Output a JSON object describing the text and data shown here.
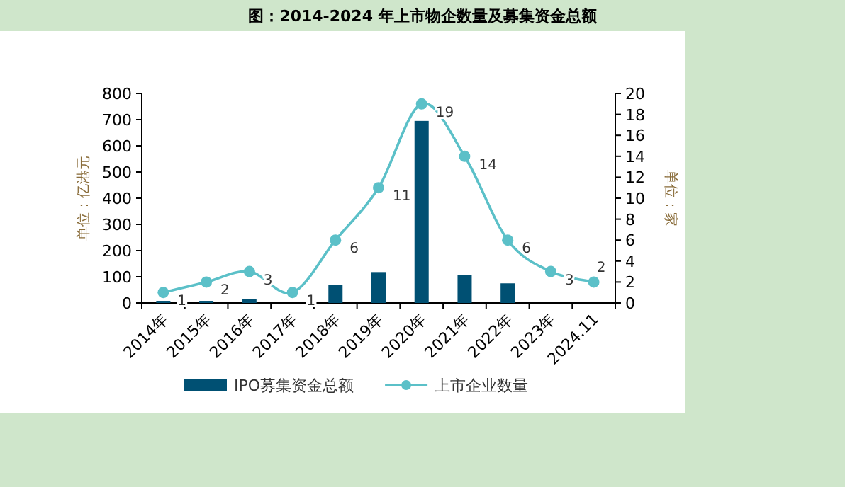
{
  "chart_data": {
    "type": "bar",
    "title": "图：2014-2024 年上市物企数量及募集资金总额",
    "categories": [
      "2014年",
      "2015年",
      "2016年",
      "2017年",
      "2018年",
      "2019年",
      "2020年",
      "2021年",
      "2022年",
      "2023年",
      "2024.11"
    ],
    "series": [
      {
        "name": "IPO募集资金总额",
        "color": "#005073",
        "values": [
          8,
          8,
          15,
          null,
          70,
          118,
          695,
          107,
          75,
          null,
          null
        ]
      },
      {
        "name": "上市企业数量",
        "type": "line",
        "axis": "y2",
        "color": "#5bc0c8",
        "marker": "circle",
        "values": [
          1,
          2,
          3,
          1,
          6,
          11,
          19,
          14,
          6,
          3,
          2
        ],
        "value_labels": [
          "1",
          "2",
          "3",
          "1",
          "6",
          "11",
          "19",
          "14",
          "6",
          "3",
          "2"
        ]
      }
    ],
    "ylabel": "单位：亿港元",
    "y2label": "单位：家",
    "ylim": [
      0,
      800
    ],
    "yticks": [
      0,
      100,
      200,
      300,
      400,
      500,
      600,
      700,
      800
    ],
    "y2lim": [
      0,
      20
    ],
    "y2ticks": [
      0,
      2,
      4,
      6,
      8,
      10,
      12,
      14,
      16,
      18,
      20
    ],
    "legend": "bottom",
    "grid": false
  }
}
